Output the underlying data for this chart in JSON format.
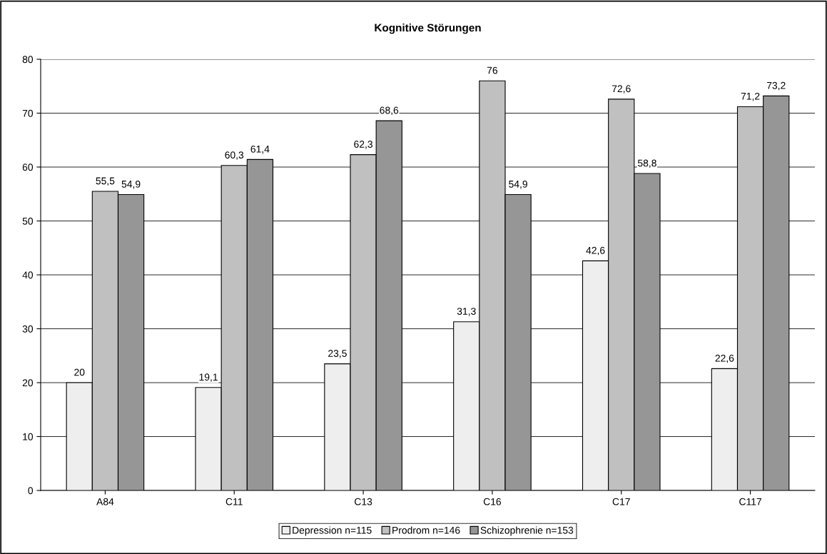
{
  "chart_data": {
    "type": "bar",
    "title": "Kognitive Störungen",
    "categories": [
      "A84",
      "C11",
      "C13",
      "C16",
      "C17",
      "C117"
    ],
    "series": [
      {
        "name": "Depression n=115",
        "color": "#eeeeee",
        "values": [
          20,
          19.1,
          23.5,
          31.3,
          42.6,
          22.6
        ],
        "value_labels": [
          "20",
          "19,1",
          "23,5",
          "31,3",
          "42,6",
          "22,6"
        ]
      },
      {
        "name": "Prodrom n=146",
        "color": "#c0c0c0",
        "values": [
          55.5,
          60.3,
          62.3,
          76,
          72.6,
          71.2
        ],
        "value_labels": [
          "55,5",
          "60,3",
          "62,3",
          "76",
          "72,6",
          "71,2"
        ]
      },
      {
        "name": "Schizophrenie n=153",
        "color": "#969696",
        "values": [
          54.9,
          61.4,
          68.6,
          54.9,
          58.8,
          73.2
        ],
        "value_labels": [
          "54,9",
          "61,4",
          "68,6",
          "54,9",
          "58,8",
          "73,2"
        ]
      }
    ],
    "ylim": [
      0,
      80
    ],
    "yticks": [
      0,
      10,
      20,
      30,
      40,
      50,
      60,
      70,
      80
    ],
    "grid": "y",
    "legend": "bottom"
  }
}
